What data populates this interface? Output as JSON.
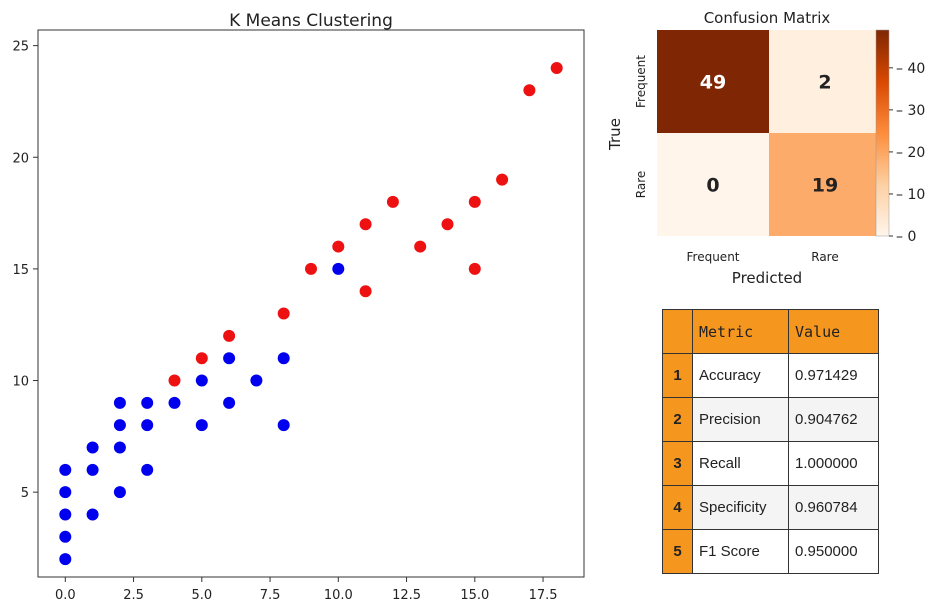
{
  "chart_data": [
    {
      "type": "scatter",
      "title": "K Means Clustering",
      "xlim": [
        -1,
        19
      ],
      "ylim": [
        1.2,
        25.7
      ],
      "xticks": [
        0,
        2.5,
        5,
        7.5,
        10,
        12.5,
        15,
        17.5
      ],
      "xtick_labels": [
        "0.0",
        "2.5",
        "5.0",
        "7.5",
        "10.0",
        "12.5",
        "15.0",
        "17.5"
      ],
      "yticks": [
        5,
        10,
        15,
        20,
        25
      ],
      "ytick_labels": [
        "5",
        "10",
        "15",
        "20",
        "25"
      ],
      "grid": false,
      "series": [
        {
          "color": "#0000ee",
          "points": [
            [
              0,
              2
            ],
            [
              0,
              3
            ],
            [
              0,
              4
            ],
            [
              0,
              5
            ],
            [
              0,
              6
            ],
            [
              1,
              4
            ],
            [
              1,
              6
            ],
            [
              1,
              7
            ],
            [
              2,
              5
            ],
            [
              2,
              7
            ],
            [
              2,
              8
            ],
            [
              2,
              9
            ],
            [
              3,
              6
            ],
            [
              3,
              8
            ],
            [
              3,
              9
            ],
            [
              4,
              9
            ],
            [
              5,
              8
            ],
            [
              5,
              10
            ],
            [
              6,
              9
            ],
            [
              6,
              11
            ],
            [
              7,
              10
            ],
            [
              8,
              8
            ],
            [
              8,
              11
            ],
            [
              10,
              15
            ]
          ]
        },
        {
          "color": "#ee1111",
          "points": [
            [
              4,
              10
            ],
            [
              5,
              11
            ],
            [
              6,
              12
            ],
            [
              8,
              13
            ],
            [
              9,
              15
            ],
            [
              10,
              16
            ],
            [
              11,
              14
            ],
            [
              11,
              17
            ],
            [
              12,
              18
            ],
            [
              13,
              16
            ],
            [
              14,
              17
            ],
            [
              15,
              15
            ],
            [
              15,
              18
            ],
            [
              16,
              19
            ],
            [
              17,
              23
            ],
            [
              18,
              24
            ]
          ]
        }
      ]
    },
    {
      "type": "heatmap",
      "title": "Confusion Matrix",
      "xlabel": "Predicted",
      "ylabel": "True",
      "x_categories": [
        "Frequent",
        "Rare"
      ],
      "y_categories": [
        "Frequent",
        "Rare"
      ],
      "cells": [
        [
          49,
          2
        ],
        [
          0,
          19
        ]
      ],
      "cell_labels": [
        [
          "49",
          "2"
        ],
        [
          "0",
          "19"
        ]
      ],
      "vmin": 0,
      "vmax": 49,
      "colorbar_ticks": [
        0,
        10,
        20,
        30,
        40
      ],
      "colorbar_tick_labels": [
        "0",
        "10",
        "20",
        "30",
        "40"
      ],
      "colormap": "oranges"
    }
  ],
  "metrics_table": {
    "headers": [
      "Metric",
      "Value"
    ],
    "rows": [
      {
        "index": "1",
        "metric": "Accuracy",
        "value": "0.971429"
      },
      {
        "index": "2",
        "metric": "Precision",
        "value": "0.904762"
      },
      {
        "index": "3",
        "metric": "Recall",
        "value": "1.000000"
      },
      {
        "index": "4",
        "metric": "Specificity",
        "value": "0.960784"
      },
      {
        "index": "5",
        "metric": "F1 Score",
        "value": "0.950000"
      }
    ],
    "header_color": "#f5961f"
  }
}
